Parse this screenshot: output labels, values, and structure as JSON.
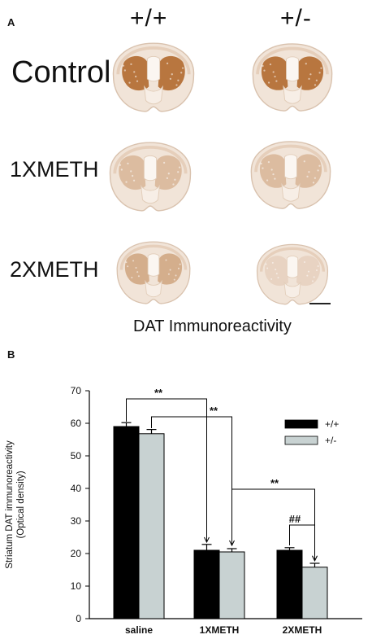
{
  "panel_a": {
    "letter": "A",
    "genotypes": [
      "+/+",
      "+/-"
    ],
    "rows": [
      "Control",
      "1XMETH",
      "2XMETH"
    ],
    "caption": "DAT Immunoreactivity",
    "stain_colors": {
      "control": "#b8763f",
      "1xmeth": "#dcbca0",
      "2xmeth_wt": "#d4ae8c",
      "2xmeth_het": "#e8d3c2",
      "tissue": "#f1e4d8"
    }
  },
  "panel_b": {
    "letter": "B",
    "significance": [
      "**",
      "**",
      "**",
      "##"
    ]
  },
  "chart_data": {
    "type": "bar",
    "categories": [
      "saline",
      "1XMETH",
      "2XMETH"
    ],
    "series": [
      {
        "name": "+/+",
        "values": [
          59,
          21,
          21
        ],
        "errors": [
          1.2,
          1.8,
          0.8
        ],
        "color": "#000000"
      },
      {
        "name": "+/-",
        "values": [
          56.8,
          20.5,
          15.8
        ],
        "errors": [
          1.3,
          1.0,
          1.2
        ],
        "color": "#c8d2d2"
      }
    ],
    "ylabel": "Striatum DAT immunoreactivity\n(Optical density)",
    "ylabel_lines": [
      "Striatum DAT immunoreactivity",
      "(Optical density)"
    ],
    "xlabel": "",
    "ylim": [
      0,
      70
    ],
    "yticks": [
      "0",
      "10",
      "20",
      "30",
      "40",
      "50",
      "60",
      "70"
    ],
    "legend_position": "top-right",
    "grid": false
  }
}
